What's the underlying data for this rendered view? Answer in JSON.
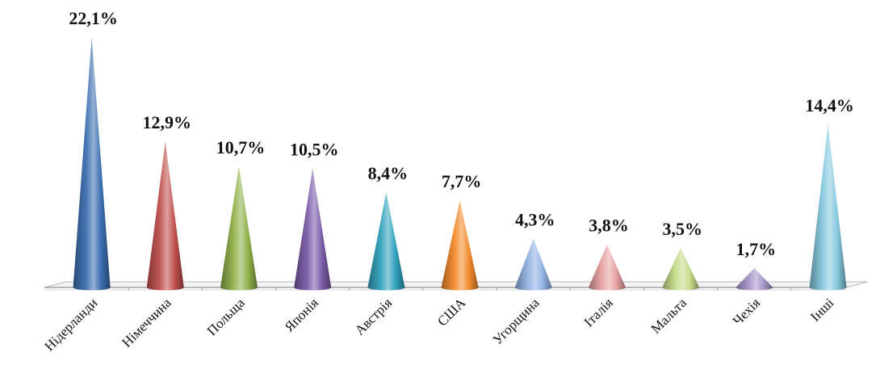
{
  "chart_data": {
    "type": "bar",
    "bar_shape": "cone",
    "categories": [
      "Нідерланди",
      "Німеччина",
      "Польща",
      "Японія",
      "Австрія",
      "США",
      "Угорщина",
      "Італія",
      "Мальта",
      "Чехія",
      "Інші"
    ],
    "values": [
      22.1,
      12.9,
      10.7,
      10.5,
      8.4,
      7.7,
      4.3,
      3.8,
      3.5,
      1.7,
      14.4
    ],
    "value_labels": [
      "22,1%",
      "12,9%",
      "10,7%",
      "10,5%",
      "8,4%",
      "7,7%",
      "4,3%",
      "3,8%",
      "3,5%",
      "1,7%",
      "14,4%"
    ],
    "colors": [
      "#3c6fb0",
      "#c0504d",
      "#8fb04a",
      "#7b5ca8",
      "#31a3bd",
      "#f38b2e",
      "#94b3e3",
      "#e8a2a2",
      "#c6dc8a",
      "#a796cb",
      "#86c8df"
    ],
    "title": "",
    "xlabel": "",
    "ylabel": "",
    "ylim": [
      0,
      22.1
    ],
    "grid": false,
    "legend": "none"
  }
}
